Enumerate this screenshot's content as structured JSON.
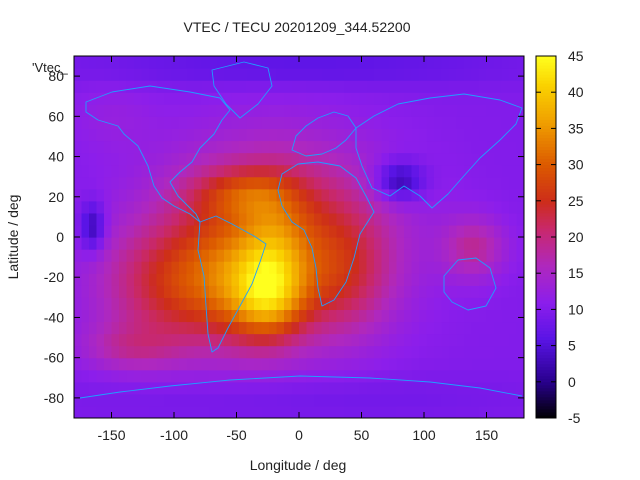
{
  "chart_data": {
    "type": "heatmap",
    "title": "VTEC / TECU 20201209_344.52200",
    "xlabel": "Longitude / deg",
    "ylabel": "Latitude / deg",
    "key_label": "'Vtec_",
    "xlim": [
      -180,
      180
    ],
    "ylim": [
      -90,
      90
    ],
    "x_ticks": [
      -150,
      -100,
      -50,
      0,
      50,
      100,
      150
    ],
    "y_ticks": [
      -80,
      -60,
      -40,
      -20,
      0,
      20,
      40,
      60,
      80
    ],
    "colorbar": {
      "min": -5,
      "max": 45,
      "ticks": [
        -5,
        0,
        5,
        10,
        15,
        20,
        25,
        30,
        35,
        40,
        45
      ]
    },
    "grid": false,
    "background_value": 10,
    "regions": [
      {
        "lon": -20,
        "lat": 0,
        "rlon": 90,
        "rlat": 45,
        "value": 16
      },
      {
        "lon": -45,
        "lat": -25,
        "rlon": 55,
        "rlat": 30,
        "value": 10
      },
      {
        "lon": -25,
        "lat": -30,
        "rlon": 28,
        "rlat": 20,
        "value": 12
      },
      {
        "lon": -20,
        "lat": -5,
        "rlon": 25,
        "rlat": 30,
        "value": 6
      },
      {
        "lon": -110,
        "lat": -25,
        "rlon": 55,
        "rlat": 30,
        "value": 9
      },
      {
        "lon": -135,
        "lat": -55,
        "rlon": 40,
        "rlat": 12,
        "value": 6
      },
      {
        "lon": -45,
        "lat": 22,
        "rlon": 40,
        "rlat": 12,
        "value": 8
      },
      {
        "lon": 40,
        "lat": -20,
        "rlon": 35,
        "rlat": 30,
        "value": 6
      },
      {
        "lon": 140,
        "lat": -5,
        "rlon": 25,
        "rlat": 15,
        "value": 8
      },
      {
        "lon": -150,
        "lat": 60,
        "rlon": 35,
        "rlat": 18,
        "value": 2
      },
      {
        "lon": -165,
        "lat": 5,
        "rlon": 10,
        "rlat": 12,
        "value": -9
      },
      {
        "lon": 80,
        "lat": 28,
        "rlon": 20,
        "rlat": 10,
        "value": -10
      },
      {
        "lon": 0,
        "lat": 85,
        "rlon": 180,
        "rlat": 10,
        "value": -4
      },
      {
        "lon": 0,
        "lat": -80,
        "rlon": 180,
        "rlat": 12,
        "value": -2
      }
    ]
  }
}
